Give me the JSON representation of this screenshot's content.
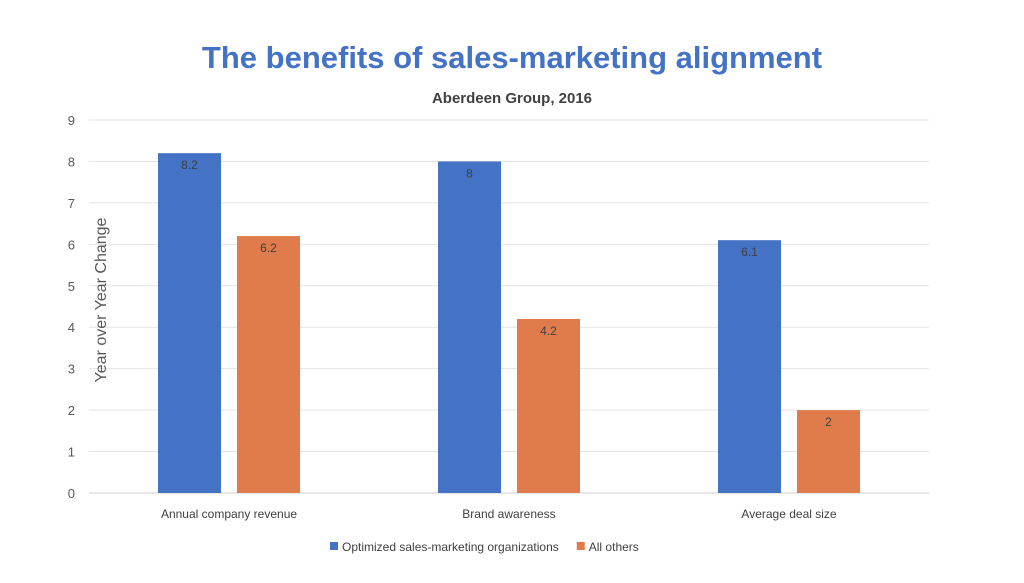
{
  "chart_data": {
    "type": "bar",
    "title": "The benefits of sales-marketing alignment",
    "subtitle": "Aberdeen Group, 2016",
    "xlabel": "",
    "ylabel": "Year over Year Change",
    "ylim": [
      0,
      9
    ],
    "yticks": [
      0,
      1,
      2,
      3,
      4,
      5,
      6,
      7,
      8,
      9
    ],
    "grid": true,
    "legend": "bottom",
    "categories": [
      "Annual company revenue",
      "Brand awareness",
      "Average deal size"
    ],
    "series": [
      {
        "name": "Optimized sales-marketing organizations",
        "values": [
          8.2,
          8,
          6.1
        ],
        "color": "#4472C4"
      },
      {
        "name": "All others",
        "values": [
          6.2,
          4.2,
          2
        ],
        "color": "#E07C4C"
      }
    ]
  }
}
